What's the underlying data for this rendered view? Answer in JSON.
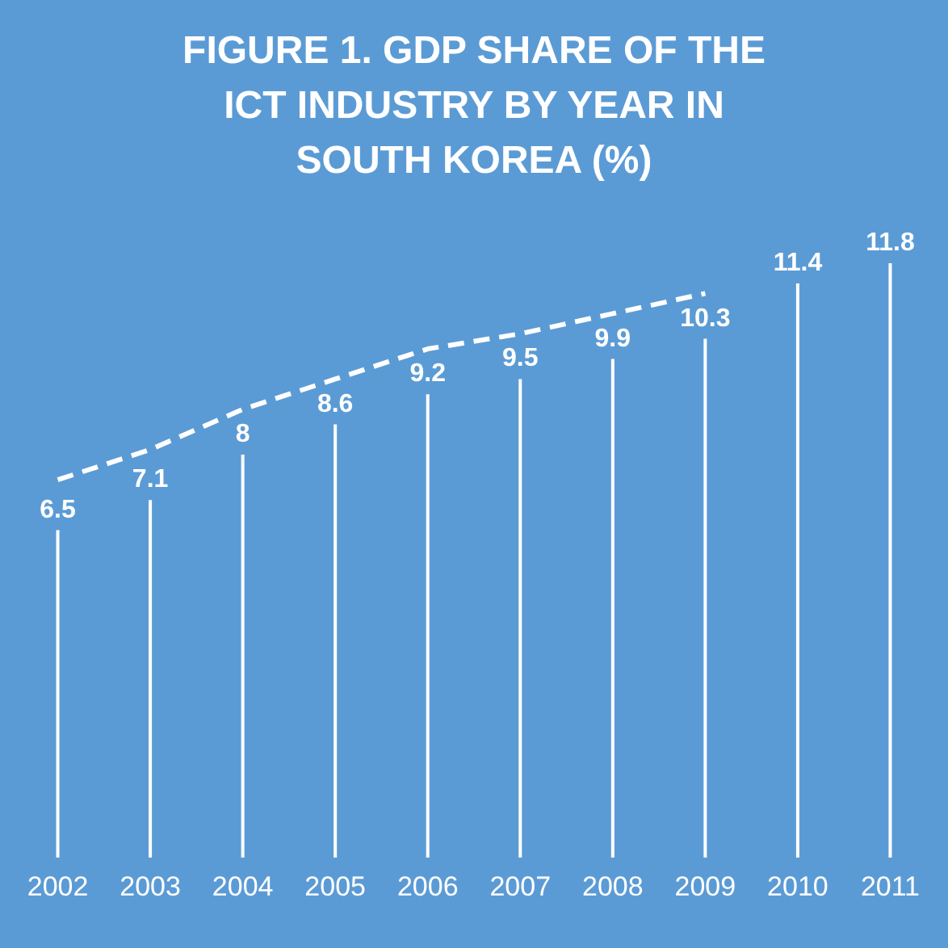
{
  "chart_data": {
    "type": "bar",
    "title": "FIGURE 1. GDP SHARE OF THE ICT INDUSTRY BY YEAR IN SOUTH KOREA (%)",
    "categories": [
      "2002",
      "2003",
      "2004",
      "2005",
      "2006",
      "2007",
      "2008",
      "2009",
      "2010",
      "2011"
    ],
    "series": [
      {
        "color": "#ffffff",
        "values": [
          6.5,
          7.1,
          8,
          8.6,
          9.2,
          9.5,
          9.9,
          10.3,
          11.4,
          11.8
        ],
        "value_labels": [
          "6.5",
          "7.1",
          "8",
          "8.6",
          "9.2",
          "9.5",
          "9.9",
          "10.3",
          "11.4",
          "11.8"
        ]
      },
      {
        "type": "line",
        "color": "#ffffff",
        "line_style": "dashed",
        "values": [
          7.5,
          8.1,
          8.9,
          9.5,
          10.1,
          10.4,
          10.8,
          11.2,
          null,
          null
        ]
      }
    ],
    "grid": false
  }
}
